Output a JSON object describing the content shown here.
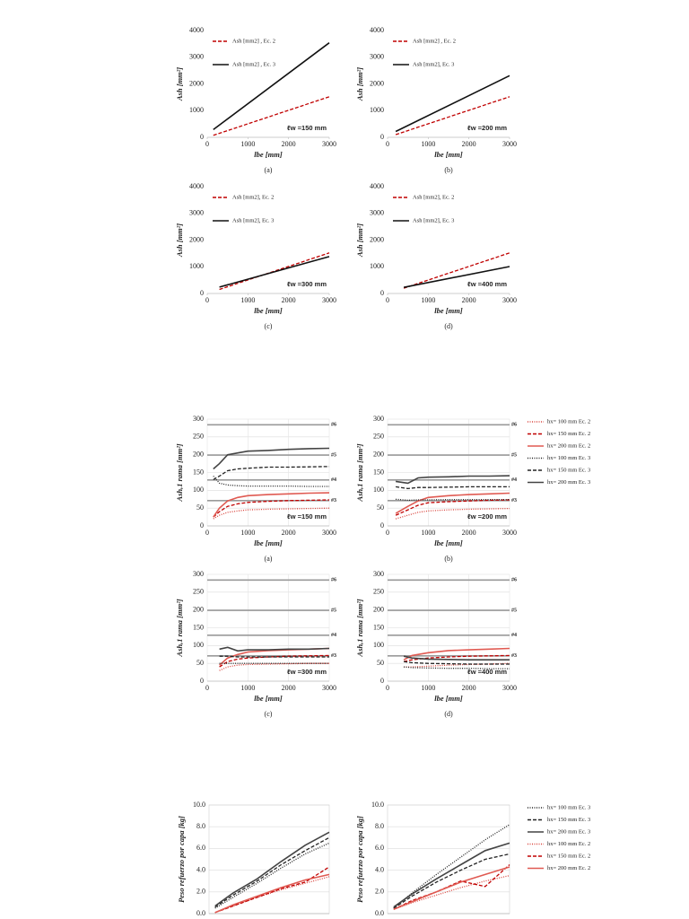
{
  "chart_data": [
    {
      "type": "line",
      "caption": "(a)",
      "xlabel": "lbe [mm]",
      "ylabel": "Ash [mm²]",
      "annotation": "ℓw =150 mm",
      "legend": "upper left",
      "xlim": [
        0,
        3000
      ],
      "ylim": [
        0,
        4000
      ],
      "xticks": [
        0,
        1000,
        2000,
        3000
      ],
      "yticks": [
        0,
        1000,
        2000,
        3000,
        4000
      ],
      "grid": "none",
      "x": [
        150,
        3000
      ],
      "series": [
        {
          "name": "Ash [mm2] , Ec. 2",
          "color": "#c00000",
          "dash": "dashed",
          "values": [
            75,
            1520
          ]
        },
        {
          "name": "Ash [mm2] , Ec. 3",
          "color": "#111111",
          "dash": "solid",
          "values": [
            290,
            3540
          ]
        }
      ]
    },
    {
      "type": "line",
      "caption": "(b)",
      "xlabel": "lbe [mm]",
      "ylabel": "Ash [mm²]",
      "annotation": "ℓw =200 mm",
      "legend": "upper left",
      "xlim": [
        0,
        3000
      ],
      "ylim": [
        0,
        4000
      ],
      "xticks": [
        0,
        1000,
        2000,
        3000
      ],
      "yticks": [
        0,
        1000,
        2000,
        3000,
        4000
      ],
      "grid": "none",
      "x": [
        200,
        3000
      ],
      "series": [
        {
          "name": "Ash [mm2] , Ec. 2",
          "color": "#c00000",
          "dash": "dashed",
          "values": [
            100,
            1520
          ]
        },
        {
          "name": "Ash [mm2], Ec. 3",
          "color": "#111111",
          "dash": "solid",
          "values": [
            220,
            2310
          ]
        }
      ]
    },
    {
      "type": "line",
      "caption": "(c)",
      "xlabel": "lbe [mm]",
      "ylabel": "Ash [mm²]",
      "annotation": "ℓw =300 mm",
      "legend": "upper left",
      "xlim": [
        0,
        3000
      ],
      "ylim": [
        0,
        4000
      ],
      "xticks": [
        0,
        1000,
        2000,
        3000
      ],
      "yticks": [
        0,
        1000,
        2000,
        3000,
        4000
      ],
      "grid": "none",
      "x": [
        300,
        3000
      ],
      "series": [
        {
          "name": "Ash [mm2], Ec. 2",
          "color": "#c00000",
          "dash": "dashed",
          "values": [
            150,
            1520
          ]
        },
        {
          "name": "Ash [mm2], Ec. 3",
          "color": "#111111",
          "dash": "solid",
          "values": [
            240,
            1380
          ]
        }
      ]
    },
    {
      "type": "line",
      "caption": "(d)",
      "xlabel": "lbe [mm]",
      "ylabel": "Ash [mm²]",
      "annotation": "ℓw =400 mm",
      "legend": "upper left",
      "xlim": [
        0,
        3000
      ],
      "ylim": [
        0,
        4000
      ],
      "xticks": [
        0,
        1000,
        2000,
        3000
      ],
      "yticks": [
        0,
        1000,
        2000,
        3000,
        4000
      ],
      "grid": "none",
      "x": [
        400,
        3000
      ],
      "series": [
        {
          "name": "Ash [mm2], Ec. 2",
          "color": "#c00000",
          "dash": "dashed",
          "values": [
            200,
            1520
          ]
        },
        {
          "name": "Ash [mm2], Ec. 3",
          "color": "#111111",
          "dash": "solid",
          "values": [
            230,
            1010
          ]
        }
      ]
    },
    {
      "type": "line",
      "caption": "(a)",
      "xlabel": "lbe [mm]",
      "ylabel": "Ash,1 rama [mm²]",
      "annotation": "ℓw =150 mm",
      "grid": "both",
      "xlim": [
        0,
        3000
      ],
      "ylim": [
        0,
        300
      ],
      "xticks": [
        0,
        1000,
        2000,
        3000
      ],
      "yticks": [
        0,
        50,
        100,
        150,
        200,
        250,
        300
      ],
      "reference_lines": [
        {
          "value": 71,
          "label": "#3"
        },
        {
          "value": 129,
          "label": "#4"
        },
        {
          "value": 199,
          "label": "#5"
        },
        {
          "value": 284,
          "label": "#6"
        }
      ],
      "x": [
        150,
        300,
        500,
        750,
        1000,
        1500,
        2000,
        2500,
        3000
      ],
      "series": [
        {
          "color": "#d9443c",
          "dash": "dotted",
          "values": [
            20,
            30,
            38,
            42,
            45,
            47,
            48,
            49,
            50
          ]
        },
        {
          "color": "#c00000",
          "dash": "dashed",
          "values": [
            25,
            40,
            55,
            62,
            66,
            69,
            71,
            72,
            73
          ]
        },
        {
          "color": "#e05a52",
          "dash": "solid",
          "values": [
            25,
            50,
            70,
            80,
            85,
            88,
            90,
            92,
            93
          ]
        },
        {
          "color": "#222222",
          "dash": "dotted",
          "values": [
            140,
            120,
            115,
            113,
            112,
            112,
            112,
            111,
            111
          ]
        },
        {
          "color": "#222222",
          "dash": "dashed",
          "values": [
            130,
            140,
            155,
            160,
            162,
            165,
            165,
            166,
            167
          ]
        },
        {
          "color": "#444444",
          "dash": "solid",
          "values": [
            160,
            175,
            200,
            205,
            210,
            212,
            215,
            217,
            218
          ]
        }
      ]
    },
    {
      "type": "line",
      "caption": "(b)",
      "xlabel": "lbe [mm]",
      "ylabel": "Ash,1 rama [mm²]",
      "annotation": "ℓw =200 mm",
      "grid": "both",
      "legend": "right",
      "xlim": [
        0,
        3000
      ],
      "ylim": [
        0,
        300
      ],
      "xticks": [
        0,
        1000,
        2000,
        3000
      ],
      "yticks": [
        0,
        50,
        100,
        150,
        200,
        250,
        300
      ],
      "reference_lines": [
        {
          "value": 71,
          "label": "#3"
        },
        {
          "value": 129,
          "label": "#4"
        },
        {
          "value": 199,
          "label": "#5"
        },
        {
          "value": 284,
          "label": "#6"
        }
      ],
      "x": [
        200,
        500,
        750,
        1000,
        1500,
        2000,
        2500,
        3000
      ],
      "series": [
        {
          "name": "hx= 100 mm Ec. 2",
          "color": "#d9443c",
          "dash": "dotted",
          "values": [
            20,
            30,
            38,
            42,
            45,
            47,
            48,
            49
          ]
        },
        {
          "name": "hx= 150 mm Ec. 2",
          "color": "#c00000",
          "dash": "dashed",
          "values": [
            30,
            45,
            58,
            65,
            68,
            70,
            72,
            73
          ]
        },
        {
          "name": "hx= 200 mm Ec. 2",
          "color": "#e05a52",
          "dash": "solid",
          "values": [
            35,
            55,
            70,
            80,
            85,
            88,
            90,
            92
          ]
        },
        {
          "name": "hx= 100 mm Ec. 3",
          "color": "#222222",
          "dash": "dotted",
          "values": [
            75,
            72,
            73,
            73,
            74,
            74,
            74,
            74
          ]
        },
        {
          "name": "hx= 150 mm Ec. 3",
          "color": "#222222",
          "dash": "dashed",
          "values": [
            110,
            105,
            108,
            108,
            109,
            110,
            110,
            110
          ]
        },
        {
          "name": "hx= 200 mm Ec. 3",
          "color": "#444444",
          "dash": "solid",
          "values": [
            125,
            120,
            135,
            137,
            138,
            140,
            140,
            141
          ]
        }
      ]
    },
    {
      "type": "line",
      "caption": "(c)",
      "xlabel": "lbe [mm]",
      "ylabel": "Ash,1 rama [mm²]",
      "annotation": "ℓw =300 mm",
      "grid": "both",
      "xlim": [
        0,
        3000
      ],
      "ylim": [
        0,
        300
      ],
      "xticks": [
        0,
        1000,
        2000,
        3000
      ],
      "yticks": [
        0,
        50,
        100,
        150,
        200,
        250,
        300
      ],
      "reference_lines": [
        {
          "value": 71,
          "label": "#3"
        },
        {
          "value": 129,
          "label": "#4"
        },
        {
          "value": 199,
          "label": "#5"
        },
        {
          "value": 284,
          "label": "#6"
        }
      ],
      "x": [
        300,
        500,
        750,
        1000,
        1500,
        2000,
        2500,
        3000
      ],
      "series": [
        {
          "color": "#d9443c",
          "dash": "dotted",
          "values": [
            30,
            40,
            45,
            47,
            48,
            49,
            50,
            50
          ]
        },
        {
          "color": "#c00000",
          "dash": "dashed",
          "values": [
            40,
            55,
            62,
            65,
            68,
            70,
            71,
            72
          ]
        },
        {
          "color": "#e05a52",
          "dash": "solid",
          "values": [
            45,
            65,
            75,
            82,
            86,
            88,
            90,
            92
          ]
        },
        {
          "color": "#222222",
          "dash": "dotted",
          "values": [
            50,
            50,
            50,
            50,
            50,
            50,
            50,
            50
          ]
        },
        {
          "color": "#222222",
          "dash": "dashed",
          "values": [
            70,
            70,
            68,
            68,
            68,
            68,
            68,
            68
          ]
        },
        {
          "color": "#444444",
          "dash": "solid",
          "values": [
            90,
            95,
            85,
            88,
            88,
            90,
            90,
            92
          ]
        }
      ]
    },
    {
      "type": "line",
      "caption": "(d)",
      "xlabel": "lbe [mm]",
      "ylabel": "Ash,1 rama [mm²]",
      "annotation": "ℓw =400 mm",
      "grid": "both",
      "xlim": [
        0,
        3000
      ],
      "ylim": [
        0,
        300
      ],
      "xticks": [
        0,
        1000,
        2000,
        3000
      ],
      "yticks": [
        0,
        50,
        100,
        150,
        200,
        250,
        300
      ],
      "reference_lines": [
        {
          "value": 71,
          "label": "#3"
        },
        {
          "value": 129,
          "label": "#4"
        },
        {
          "value": 199,
          "label": "#5"
        },
        {
          "value": 284,
          "label": "#6"
        }
      ],
      "x": [
        400,
        600,
        1000,
        1500,
        2000,
        2500,
        3000
      ],
      "series": [
        {
          "color": "#d9443c",
          "dash": "dotted",
          "values": [
            40,
            40,
            42,
            45,
            47,
            48,
            50
          ]
        },
        {
          "color": "#c00000",
          "dash": "dashed",
          "values": [
            55,
            60,
            65,
            68,
            70,
            71,
            72
          ]
        },
        {
          "color": "#e05a52",
          "dash": "solid",
          "values": [
            60,
            72,
            80,
            86,
            88,
            90,
            92
          ]
        },
        {
          "color": "#222222",
          "dash": "dotted",
          "values": [
            40,
            38,
            37,
            36,
            36,
            35,
            35
          ]
        },
        {
          "color": "#222222",
          "dash": "dashed",
          "values": [
            55,
            52,
            50,
            49,
            48,
            48,
            48
          ]
        },
        {
          "color": "#444444",
          "dash": "solid",
          "values": [
            70,
            65,
            62,
            61,
            60,
            60,
            60
          ]
        }
      ]
    },
    {
      "type": "line",
      "ylabel": "Peso refuerzo por capa [kg]",
      "grid": "y",
      "xlim": [
        0,
        3000
      ],
      "ylim": [
        0,
        10
      ],
      "yticks": [
        {
          "value": 0,
          "label": "0.0"
        },
        {
          "value": 2,
          "label": "2.0"
        },
        {
          "value": 4,
          "label": "4.0"
        },
        {
          "value": 6,
          "label": "6.0"
        },
        {
          "value": 8,
          "label": "8.0"
        },
        {
          "value": 10,
          "label": "10.0"
        }
      ],
      "x": [
        150,
        600,
        1200,
        1800,
        2400,
        3000
      ],
      "series": [
        {
          "color": "#222222",
          "dash": "dotted",
          "values": [
            0.5,
            1.5,
            2.8,
            4.2,
            5.5,
            6.5
          ]
        },
        {
          "color": "#222222",
          "dash": "dashed",
          "values": [
            0.6,
            1.7,
            3.0,
            4.5,
            5.8,
            7.0
          ]
        },
        {
          "color": "#444444",
          "dash": "solid",
          "values": [
            0.7,
            1.9,
            3.2,
            4.8,
            6.3,
            7.5
          ]
        },
        {
          "color": "#d9443c",
          "dash": "dotted",
          "values": [
            0.1,
            0.7,
            1.5,
            2.2,
            2.8,
            3.4
          ]
        },
        {
          "color": "#c00000",
          "dash": "dashed",
          "values": [
            0.1,
            0.7,
            1.5,
            2.3,
            2.9,
            4.3
          ]
        },
        {
          "color": "#e05a52",
          "dash": "solid",
          "values": [
            0.1,
            0.8,
            1.6,
            2.4,
            3.1,
            3.6
          ]
        }
      ]
    },
    {
      "type": "line",
      "ylabel": "Peso refuerzo por capa [kg]",
      "grid": "y",
      "legend": "right",
      "xlim": [
        0,
        3000
      ],
      "ylim": [
        0,
        10
      ],
      "yticks": [
        {
          "value": 0,
          "label": "0.0"
        },
        {
          "value": 2,
          "label": "2.0"
        },
        {
          "value": 4,
          "label": "4.0"
        },
        {
          "value": 6,
          "label": "6.0"
        },
        {
          "value": 8,
          "label": "8.0"
        },
        {
          "value": 10,
          "label": "10.0"
        }
      ],
      "x": [
        150,
        600,
        1200,
        1800,
        2400,
        3000
      ],
      "series": [
        {
          "name": "hx= 100 mm Ec. 3",
          "color": "#222222",
          "dash": "dotted",
          "values": [
            0.5,
            1.9,
            3.6,
            5.2,
            6.8,
            8.2
          ]
        },
        {
          "name": "hx= 150 mm Ec. 3",
          "color": "#222222",
          "dash": "dashed",
          "values": [
            0.5,
            1.6,
            2.9,
            4.0,
            5.0,
            5.5
          ]
        },
        {
          "name": "hx= 200 mm Ec. 3",
          "color": "#444444",
          "dash": "solid",
          "values": [
            0.6,
            1.8,
            3.2,
            4.5,
            5.8,
            6.5
          ]
        },
        {
          "name": "hx= 100 mm Ec. 2",
          "color": "#d9443c",
          "dash": "dotted",
          "values": [
            0.4,
            1.0,
            1.7,
            2.4,
            3.0,
            3.5
          ]
        },
        {
          "name": "hx= 150 mm Ec. 2",
          "color": "#c00000",
          "dash": "dashed",
          "values": [
            0.4,
            1.2,
            2.0,
            3.0,
            2.5,
            4.5
          ]
        },
        {
          "name": "hx= 200 mm Ec. 2",
          "color": "#e05a52",
          "dash": "solid",
          "values": [
            0.4,
            1.1,
            2.0,
            2.9,
            3.6,
            4.3
          ]
        }
      ]
    }
  ]
}
